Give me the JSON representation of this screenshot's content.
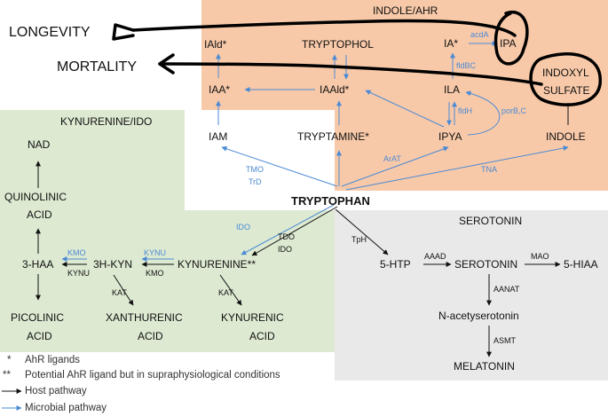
{
  "panels": {
    "indole": "INDOLE/AHR",
    "kynurenine": "KYNURENINE/IDO",
    "serotonin": "SEROTONIN"
  },
  "outcomes": {
    "longevity": "LONGEVITY",
    "mortality": "MORTALITY"
  },
  "indole_nodes": {
    "iald": "IAld*",
    "tryptophol": "TRYPTOPHOL",
    "ia": "IA*",
    "ipa": "IPA",
    "indoxyl1": "INDOXYL",
    "indoxyl2": "SULFATE",
    "iaa": "IAA*",
    "iaald": "IAAld*",
    "ila": "ILA",
    "iam": "IAM",
    "tryptamine": "TRYPTAMINE*",
    "ipya": "IPYA",
    "indole": "INDOLE"
  },
  "indole_enzymes": {
    "acda": "acdA",
    "fldbc": "fldBC",
    "fldh": "fldH",
    "porbc": "porB,C",
    "tmo": "TMO",
    "trd": "TrD",
    "arat": "ArAT",
    "tna": "TNA"
  },
  "center": "TRYPTOPHAN",
  "kyn_nodes": {
    "nad": "NAD",
    "quin1": "QUINOLINIC",
    "quin2": "ACID",
    "haa": "3-HAA",
    "hkyn": "3H-KYN",
    "kynurenine": "KYNURENINE**",
    "pico1": "PICOLINIC",
    "pico2": "ACID",
    "xan1": "XANTHURENIC",
    "xan2": "ACID",
    "kyna1": "KYNURENIC",
    "kyna2": "ACID"
  },
  "kyn_enzymes": {
    "ido_blue": "IDO",
    "tdo": "TDO",
    "ido": "IDO",
    "kmo_blue": "KMO",
    "kynu": "KYNU",
    "kynu_blue": "KYNU",
    "kmo": "KMO",
    "kat1": "KAT",
    "kat2": "KAT"
  },
  "sero_nodes": {
    "htp": "5-HTP",
    "serotonin": "SEROTONIN",
    "hiaa": "5-HIAA",
    "nacetyl": "N-acetyserotonin",
    "melatonin": "MELATONIN"
  },
  "sero_enzymes": {
    "tph": "TpH",
    "aaad": "AAAD",
    "mao": "MAO",
    "aanat": "AANAT",
    "asmt": "ASMT"
  },
  "legend": {
    "ahr": "AhR ligands",
    "potential": "Potential AhR ligand but in supraphysiological conditions",
    "host": "Host pathway",
    "microbial": "Microbial pathway",
    "star1": "*",
    "star2": "**"
  },
  "colors": {
    "host": "#111111",
    "microbial": "#4a8ad4",
    "indole_bg": "#f8c9a9",
    "kyn_bg": "#dde9d1",
    "sero_bg": "#e9e9e9"
  }
}
